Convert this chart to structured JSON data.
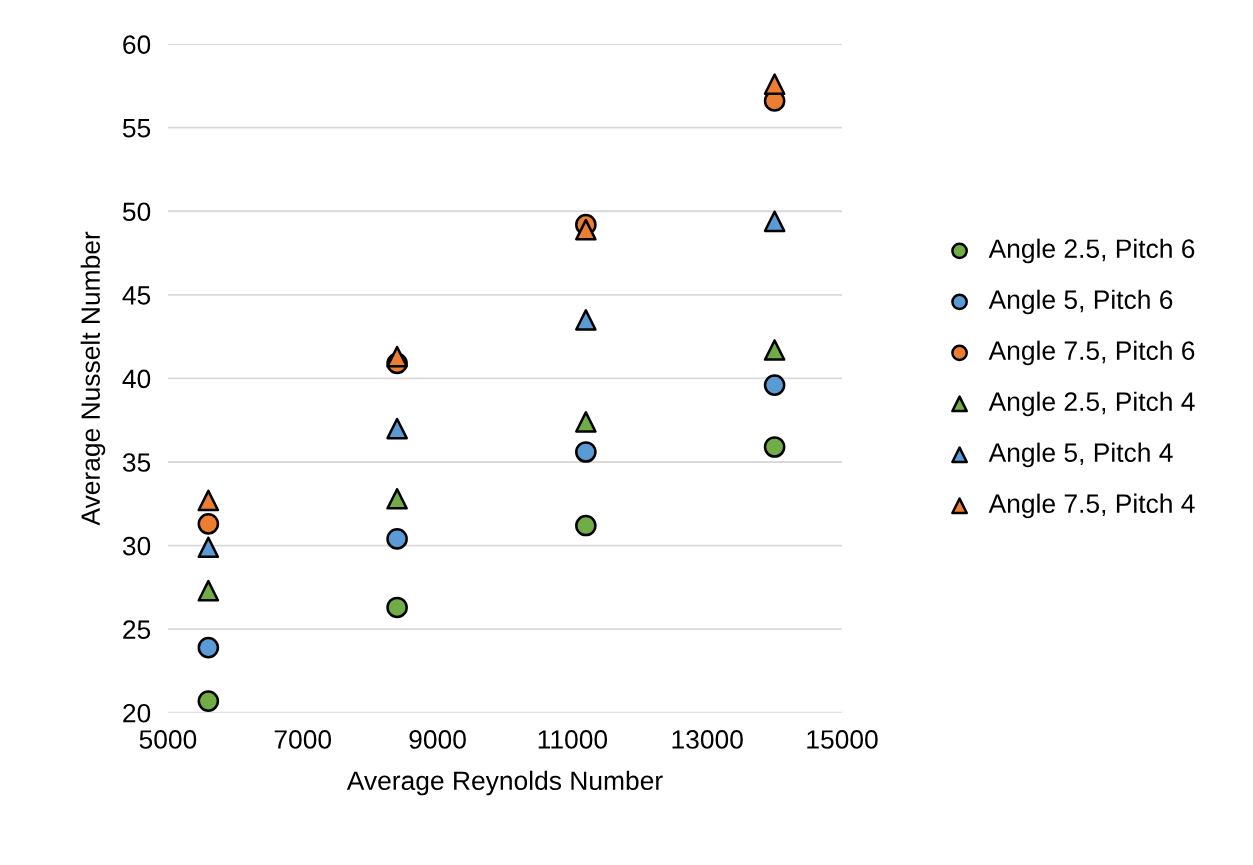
{
  "chart_data": {
    "type": "scatter",
    "xlabel": "Average Reynolds Number",
    "ylabel": "Average Nusselt Number",
    "x": [
      5600,
      8400,
      11200,
      14000
    ],
    "xlim": [
      5000,
      15000
    ],
    "xticks": [
      5000,
      7000,
      9000,
      11000,
      13000,
      15000
    ],
    "ylim": [
      20,
      60
    ],
    "yticks": [
      20,
      25,
      30,
      35,
      40,
      45,
      50,
      55,
      60
    ],
    "grid": "y",
    "legend": "right",
    "series": [
      {
        "name": "Angle 2.5, Pitch 6",
        "color": "#70ad47",
        "marker": "circle",
        "values": [
          20.7,
          26.3,
          31.2,
          35.9
        ]
      },
      {
        "name": "Angle 5, Pitch 6",
        "color": "#5b9bd5",
        "marker": "circle",
        "values": [
          23.9,
          30.4,
          35.6,
          39.6
        ]
      },
      {
        "name": "Angle 7.5, Pitch 6",
        "color": "#ed7d31",
        "marker": "circle",
        "values": [
          31.3,
          40.9,
          49.2,
          56.6
        ]
      },
      {
        "name": "Angle 2.5, Pitch 4",
        "color": "#70ad47",
        "marker": "triangle",
        "values": [
          27.3,
          32.8,
          37.4,
          41.7
        ]
      },
      {
        "name": "Angle 5, Pitch 4",
        "color": "#5b9bd5",
        "marker": "triangle",
        "values": [
          29.9,
          37.0,
          43.5,
          49.4
        ]
      },
      {
        "name": "Angle 7.5, Pitch 4",
        "color": "#ed7d31",
        "marker": "triangle",
        "values": [
          32.7,
          41.3,
          48.9,
          57.6
        ]
      }
    ]
  }
}
